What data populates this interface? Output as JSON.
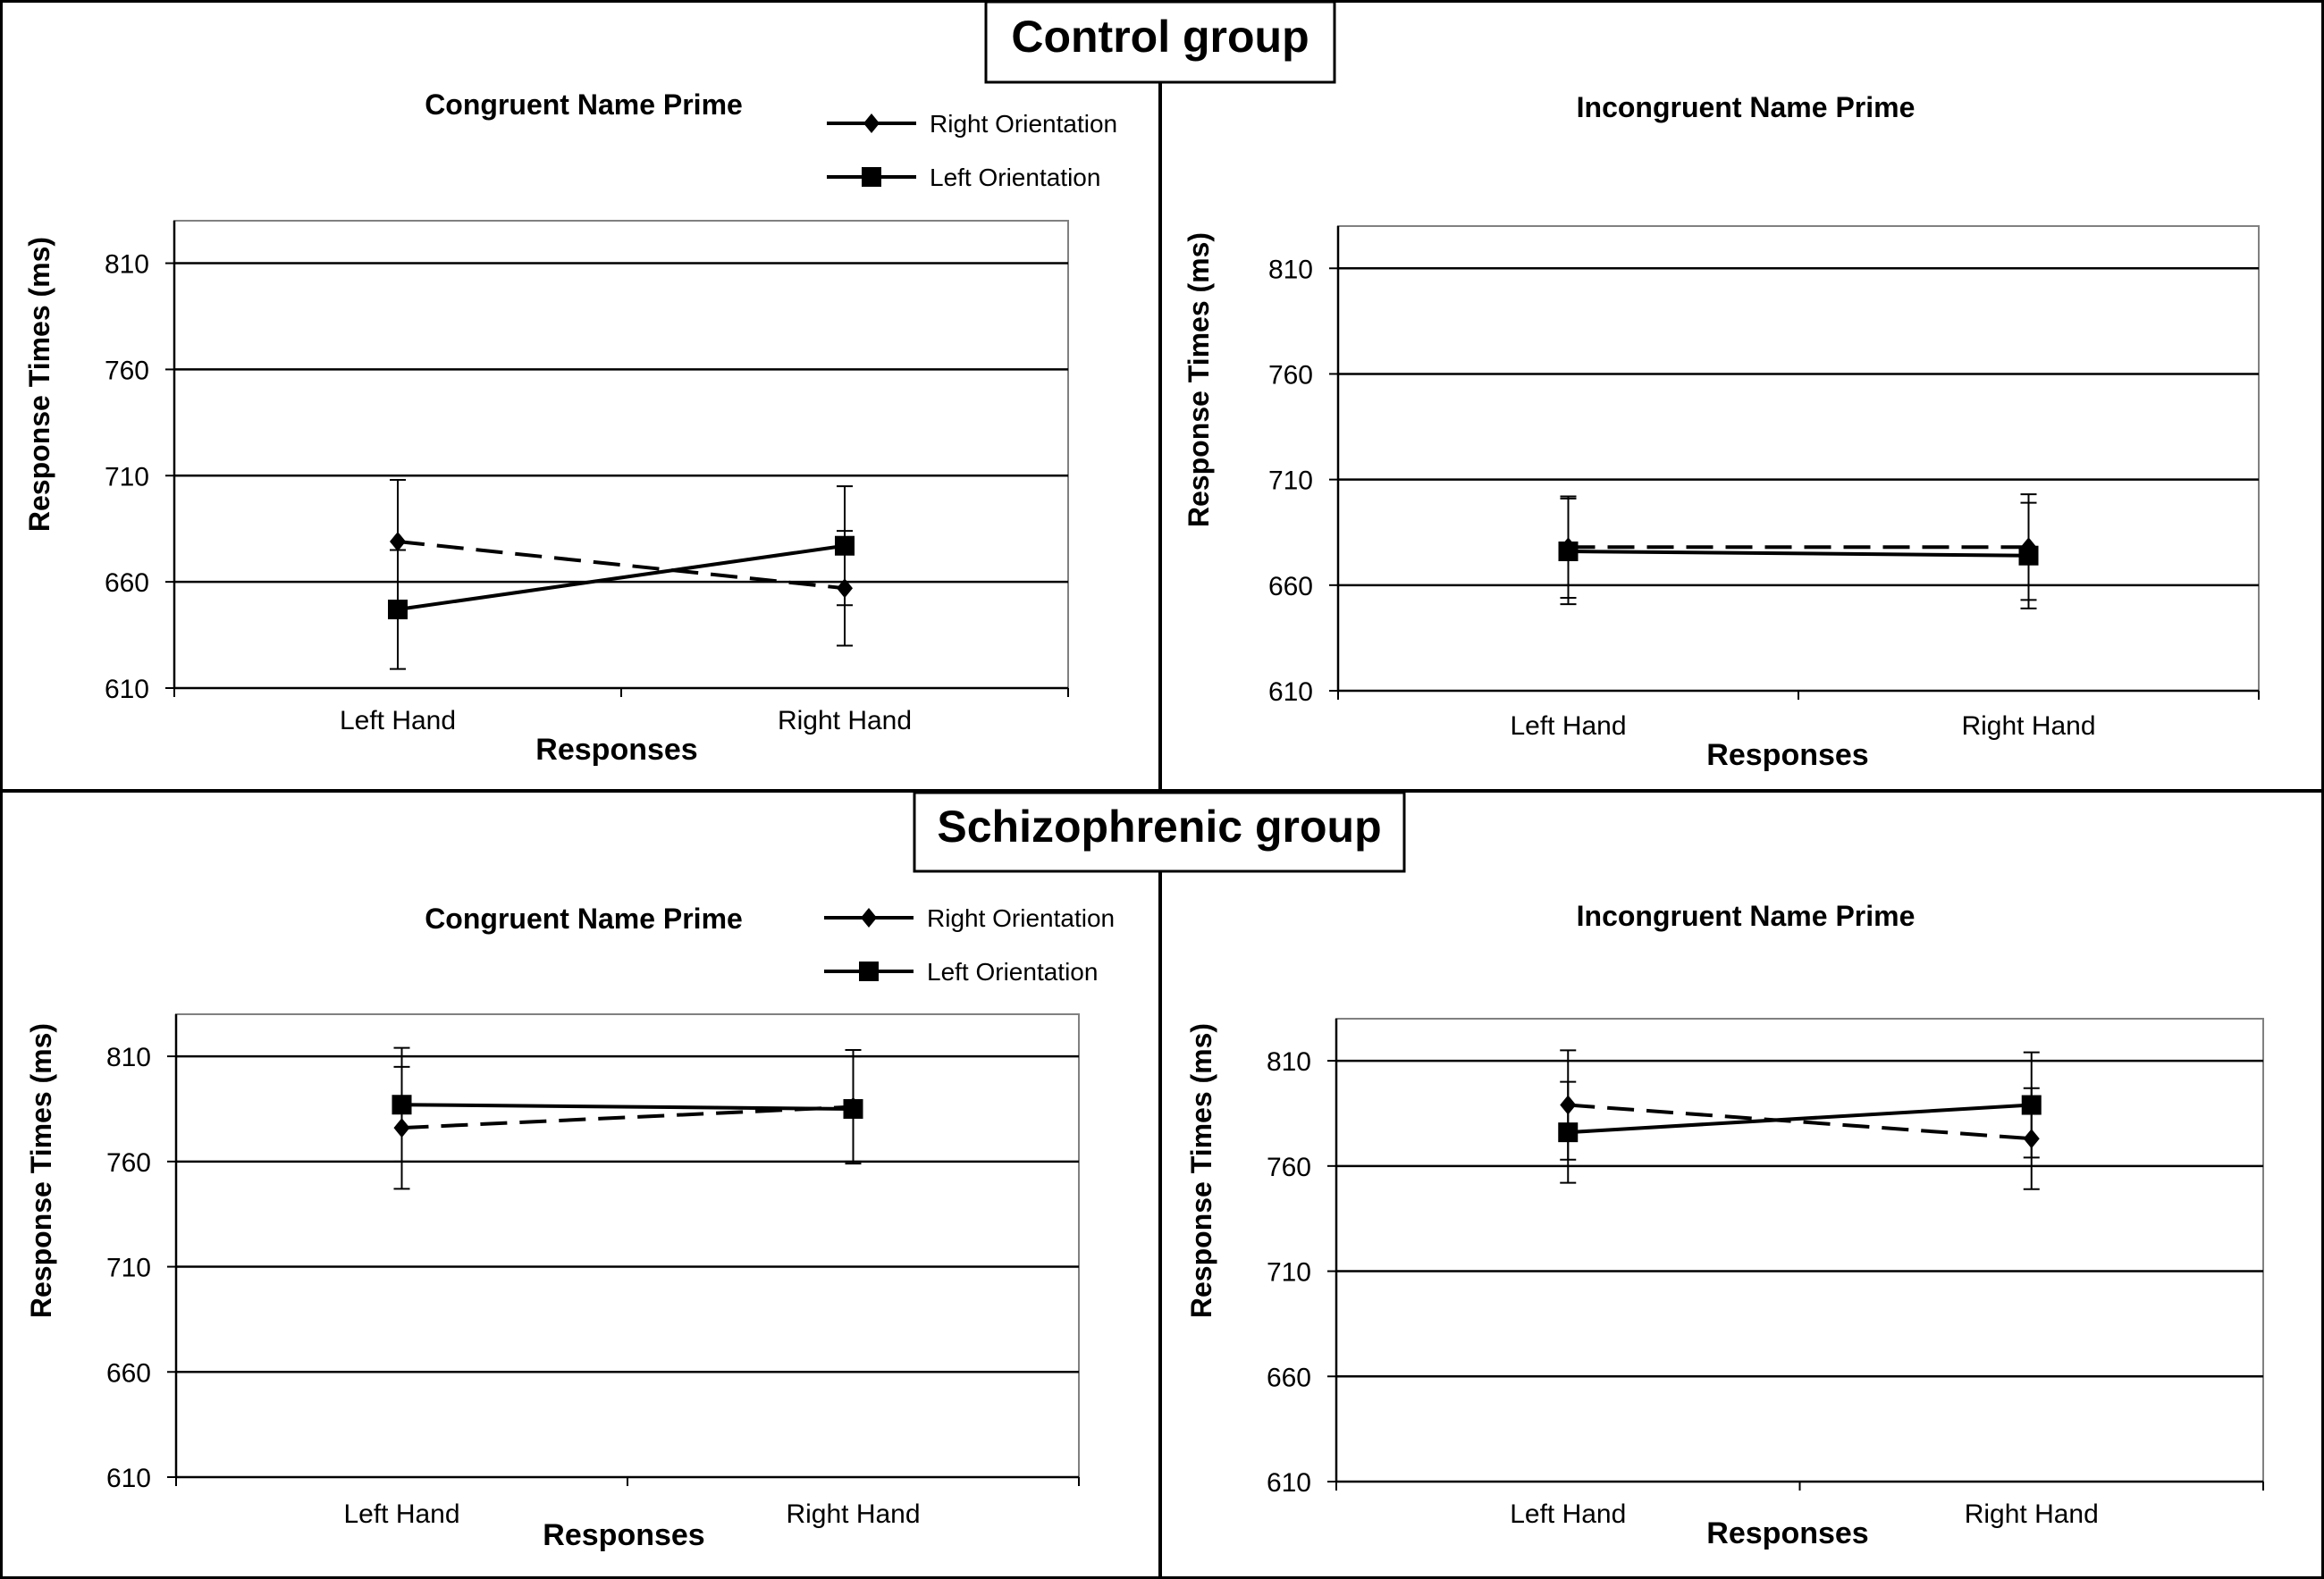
{
  "groups": [
    {
      "title": "Control group"
    },
    {
      "title": "Schizophrenic group"
    }
  ],
  "legend": {
    "right": "Right Orientation",
    "left": "Left Orientation"
  },
  "chart_data": [
    {
      "type": "line",
      "group": "Control group",
      "title": "Congruent Name Prime",
      "categories": [
        "Left Hand",
        "Right Hand"
      ],
      "xlabel": "Responses",
      "ylabel": "Response Times (ms)",
      "ylim": [
        610,
        830
      ],
      "yticks": [
        610,
        660,
        710,
        760,
        810
      ],
      "grid": true,
      "legend_position": "top-right",
      "series": [
        {
          "name": "Right Orientation",
          "style": "dashed",
          "marker": "diamond",
          "values": [
            679,
            657
          ],
          "errors": [
            29,
            27
          ]
        },
        {
          "name": "Left Orientation",
          "style": "solid",
          "marker": "square",
          "values": [
            647,
            677
          ],
          "errors": [
            28,
            28
          ]
        }
      ]
    },
    {
      "type": "line",
      "group": "Control group",
      "title": "Incongruent Name Prime",
      "categories": [
        "Left Hand",
        "Right Hand"
      ],
      "xlabel": "Responses",
      "ylabel": "Response Times (ms)",
      "ylim": [
        610,
        830
      ],
      "yticks": [
        610,
        660,
        710,
        760,
        810
      ],
      "grid": true,
      "series": [
        {
          "name": "Right Orientation",
          "style": "dashed",
          "marker": "diamond",
          "values": [
            678,
            678
          ],
          "errors": [
            24,
            25
          ]
        },
        {
          "name": "Left Orientation",
          "style": "solid",
          "marker": "square",
          "values": [
            676,
            674
          ],
          "errors": [
            25,
            25
          ]
        }
      ]
    },
    {
      "type": "line",
      "group": "Schizophrenic group",
      "title": "Congruent Name Prime",
      "categories": [
        "Left Hand",
        "Right Hand"
      ],
      "xlabel": "Responses",
      "ylabel": "Response Times (ms)",
      "ylim": [
        610,
        830
      ],
      "yticks": [
        610,
        660,
        710,
        760,
        810
      ],
      "grid": true,
      "legend_position": "top-right",
      "series": [
        {
          "name": "Right Orientation",
          "style": "dashed",
          "marker": "diamond",
          "values": [
            776,
            786
          ],
          "errors": [
            29,
            27
          ]
        },
        {
          "name": "Left Orientation",
          "style": "solid",
          "marker": "square",
          "values": [
            787,
            785
          ],
          "errors": [
            27,
            25
          ]
        }
      ]
    },
    {
      "type": "line",
      "group": "Schizophrenic group",
      "title": "Incongruent Name Prime",
      "categories": [
        "Left Hand",
        "Right Hand"
      ],
      "xlabel": "Responses",
      "ylabel": "Response Times (ms)",
      "ylim": [
        610,
        830
      ],
      "yticks": [
        610,
        660,
        710,
        760,
        810
      ],
      "grid": true,
      "series": [
        {
          "name": "Right Orientation",
          "style": "dashed",
          "marker": "diamond",
          "values": [
            789,
            773
          ],
          "errors": [
            26,
            24
          ]
        },
        {
          "name": "Left Orientation",
          "style": "solid",
          "marker": "square",
          "values": [
            776,
            789
          ],
          "errors": [
            24,
            25
          ]
        }
      ]
    }
  ]
}
